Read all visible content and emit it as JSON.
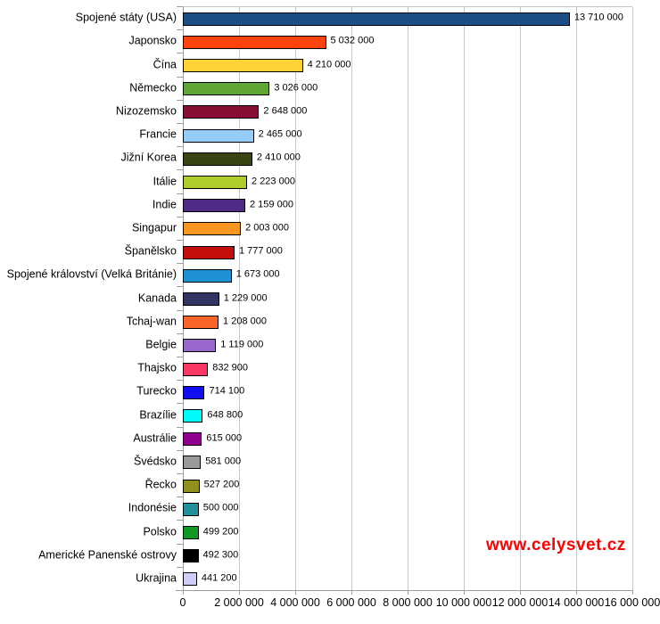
{
  "watermark": {
    "text": "www.celysvet.cz",
    "color": "#FF0000"
  },
  "style": {
    "background": "#FFFFFF",
    "axis_color": "#9E9E9E",
    "grid_color": "#C6C6C6",
    "bar_border_color": "#000000",
    "text_color": "#000000"
  },
  "chart_data": {
    "type": "bar",
    "orientation": "horizontal",
    "title": "",
    "xlabel": "",
    "ylabel": "",
    "xlim": [
      0,
      16000000
    ],
    "grid": true,
    "legend": false,
    "categories": [
      "Spojené státy (USA)",
      "Japonsko",
      "Čína",
      "Německo",
      "Nizozemsko",
      "Francie",
      "Jižní Korea",
      "Itálie",
      "Indie",
      "Singapur",
      "Španělsko",
      "Spojené království (Velká Británie)",
      "Kanada",
      "Tchaj-wan",
      "Belgie",
      "Thajsko",
      "Turecko",
      "Brazílie",
      "Austrálie",
      "Švédsko",
      "Řecko",
      "Indonésie",
      "Polsko",
      "Americké Panenské ostrovy",
      "Ukrajina"
    ],
    "values": [
      13710000,
      5032000,
      4210000,
      3026000,
      2648000,
      2465000,
      2410000,
      2223000,
      2159000,
      2003000,
      1777000,
      1673000,
      1229000,
      1208000,
      1119000,
      832900,
      714100,
      648800,
      615000,
      581000,
      527200,
      500000,
      499200,
      492300,
      441200
    ],
    "value_labels": [
      "13 710 000",
      "5 032 000",
      "4 210 000",
      "3 026 000",
      "2 648 000",
      "2 465 000",
      "2 410 000",
      "2 223 000",
      "2 159 000",
      "2 003 000",
      "1 777 000",
      "1 673 000",
      "1 229 000",
      "1 208 000",
      "1 119 000",
      "832 900",
      "714 100",
      "648 800",
      "615 000",
      "581 000",
      "527 200",
      "500 000",
      "499 200",
      "492 300",
      "441 200"
    ],
    "bar_colors": [
      "#1B4E87",
      "#FF430D",
      "#FFD235",
      "#5FA634",
      "#880E33",
      "#94CDF8",
      "#384512",
      "#AECC2A",
      "#4F2B87",
      "#F99621",
      "#C60D0D",
      "#1F90D4",
      "#303564",
      "#F96528",
      "#9966CC",
      "#F93866",
      "#0F0FEF",
      "#00FBFB",
      "#8F008F",
      "#999999",
      "#90901F",
      "#21909A",
      "#109A24",
      "#000000",
      "#CDCDF6"
    ],
    "x_ticks": [
      0,
      2000000,
      4000000,
      6000000,
      8000000,
      10000000,
      12000000,
      14000000,
      16000000
    ],
    "x_tick_labels": [
      "0",
      "2 000 000",
      "4 000 000",
      "6 000 000",
      "8 000 000",
      "10 000 000",
      "12 000 000",
      "14 000 000",
      "16 000 000"
    ]
  }
}
